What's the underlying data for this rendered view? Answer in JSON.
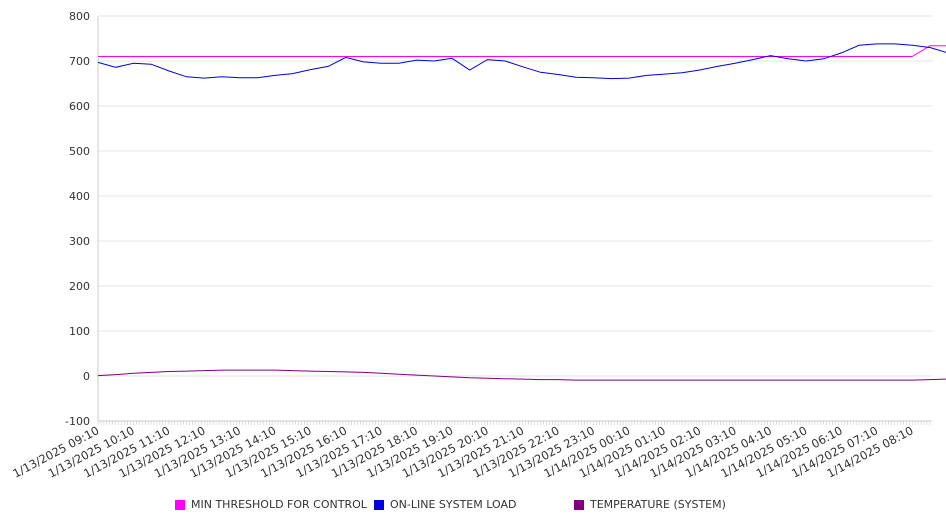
{
  "chart_data": {
    "type": "line",
    "title": "",
    "xlabel": "",
    "ylabel": "",
    "ylim": [
      -100,
      800
    ],
    "yticks": [
      800,
      700,
      600,
      500,
      400,
      300,
      200,
      100,
      0,
      -100
    ],
    "x_tick_labels": [
      "1/13/2025 09:10",
      "1/13/2025 10:10",
      "1/13/2025 11:10",
      "1/13/2025 12:10",
      "1/13/2025 13:10",
      "1/13/2025 14:10",
      "1/13/2025 15:10",
      "1/13/2025 16:10",
      "1/13/2025 17:10",
      "1/13/2025 18:10",
      "1/13/2025 19:10",
      "1/13/2025 20:10",
      "1/13/2025 21:10",
      "1/13/2025 22:10",
      "1/13/2025 23:10",
      "1/14/2025 00:10",
      "1/14/2025 01:10",
      "1/14/2025 02:10",
      "1/14/2025 03:10",
      "1/14/2025 04:10",
      "1/14/2025 05:10",
      "1/14/2025 06:10",
      "1/14/2025 07:10",
      "1/14/2025 08:10"
    ],
    "x_hours": [
      0,
      0.5,
      1,
      1.5,
      2,
      2.5,
      3,
      3.5,
      4,
      4.5,
      5,
      5.5,
      6,
      6.5,
      7,
      7.5,
      8,
      8.5,
      9,
      9.5,
      10,
      10.5,
      11,
      11.5,
      12,
      12.5,
      13,
      13.5,
      14,
      14.5,
      15,
      15.5,
      16,
      16.5,
      17,
      17.5,
      18,
      18.5,
      19,
      19.5,
      20,
      20.5,
      21,
      21.5,
      22,
      22.5,
      23,
      23.5,
      24
    ],
    "legend_position": "bottom",
    "series": [
      {
        "name": "MIN THRESHOLD FOR CONTROL",
        "color": "#FF00FF",
        "values": [
          710,
          710,
          710,
          710,
          710,
          710,
          710,
          710,
          710,
          710,
          710,
          710,
          710,
          710,
          710,
          710,
          710,
          710,
          710,
          710,
          710,
          710,
          710,
          710,
          710,
          710,
          710,
          710,
          710,
          710,
          710,
          710,
          710,
          710,
          710,
          710,
          710,
          710,
          710,
          710,
          710,
          710,
          710,
          710,
          710,
          710,
          710,
          734,
          734
        ]
      },
      {
        "name": "ON-LINE SYSTEM LOAD",
        "color": "#0000DD",
        "values": [
          697,
          686,
          695,
          693,
          678,
          665,
          662,
          665,
          663,
          663,
          668,
          672,
          681,
          688,
          708,
          698,
          695,
          695,
          702,
          700,
          706,
          680,
          703,
          700,
          687,
          675,
          670,
          664,
          663,
          661,
          662,
          668,
          671,
          674,
          680,
          688,
          695,
          703,
          712,
          705,
          700,
          705,
          718,
          735,
          738,
          738,
          735,
          730,
          718
        ]
      },
      {
        "name": "TEMPERATURE (SYSTEM)",
        "color": "#800080",
        "values": [
          1,
          3,
          6,
          8,
          10,
          11,
          12,
          13,
          13,
          13,
          13,
          12,
          11,
          10,
          9,
          8,
          6,
          4,
          2,
          0,
          -2,
          -4,
          -5,
          -6,
          -7,
          -8,
          -8,
          -9,
          -9,
          -9,
          -9,
          -9,
          -9,
          -9,
          -9,
          -9,
          -9,
          -9,
          -9,
          -9,
          -9,
          -9,
          -9,
          -9,
          -9,
          -9,
          -9,
          -8,
          -7
        ]
      }
    ]
  }
}
